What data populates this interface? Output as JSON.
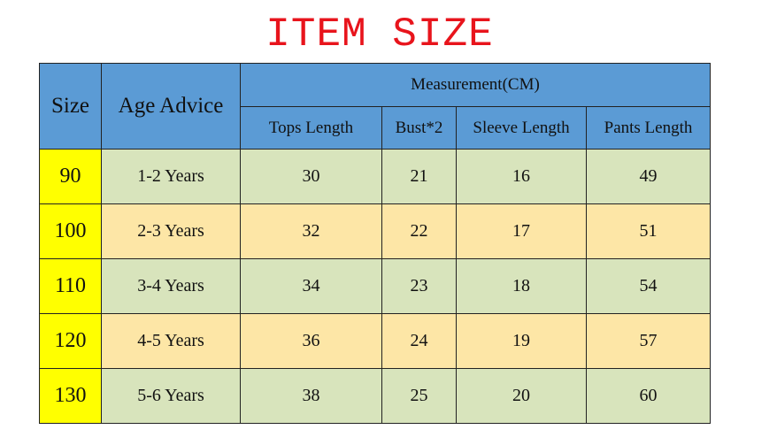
{
  "title": "ITEM SIZE",
  "colors": {
    "header": "#5b9bd5",
    "size_cell": "#ffff00",
    "row_green": "#d8e4bc",
    "row_orange": "#fde6a6",
    "title": "#e8141c"
  },
  "table": {
    "headers": {
      "size": "Size",
      "age": "Age Advice",
      "measurement": "Measurement(CM)",
      "sub": [
        "Tops Length",
        "Bust*2",
        "Sleeve Length",
        "Pants Length"
      ]
    },
    "rows": [
      {
        "size": "90",
        "age": "1-2 Years",
        "values": [
          "30",
          "21",
          "16",
          "49"
        ]
      },
      {
        "size": "100",
        "age": "2-3 Years",
        "values": [
          "32",
          "22",
          "17",
          "51"
        ]
      },
      {
        "size": "110",
        "age": "3-4 Years",
        "values": [
          "34",
          "23",
          "18",
          "54"
        ]
      },
      {
        "size": "120",
        "age": "4-5 Years",
        "values": [
          "36",
          "24",
          "19",
          "57"
        ]
      },
      {
        "size": "130",
        "age": "5-6 Years",
        "values": [
          "38",
          "25",
          "20",
          "60"
        ]
      }
    ]
  }
}
